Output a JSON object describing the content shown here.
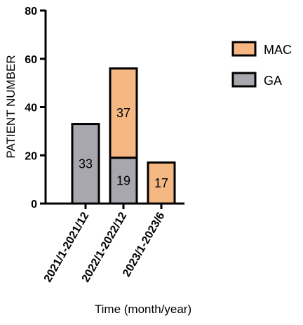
{
  "chart_data": {
    "type": "bar",
    "stacked": true,
    "categories": [
      "2021/1-2021/12",
      "2022/1-2022/12",
      "2023/1-2023/6"
    ],
    "series": [
      {
        "name": "GA",
        "values": [
          33,
          19,
          0
        ],
        "color": "#a7a7ad"
      },
      {
        "name": "MAC",
        "values": [
          0,
          37,
          17
        ],
        "color": "#f5b882"
      }
    ],
    "data_labels": [
      {
        "category": "2021/1-2021/12",
        "series": "GA",
        "text": "33"
      },
      {
        "category": "2022/1-2022/12",
        "series": "GA",
        "text": "19"
      },
      {
        "category": "2022/1-2022/12",
        "series": "MAC",
        "text": "37"
      },
      {
        "category": "2023/1-2023/6",
        "series": "MAC",
        "text": "17"
      }
    ],
    "legend_order": [
      "MAC",
      "GA"
    ],
    "legend_position": "right",
    "xlabel": "Time (month/year)",
    "ylabel": "PATIENT NUMBER",
    "ylim": [
      0,
      80
    ],
    "yticks": [
      0,
      20,
      40,
      60,
      80
    ],
    "grid": false
  }
}
